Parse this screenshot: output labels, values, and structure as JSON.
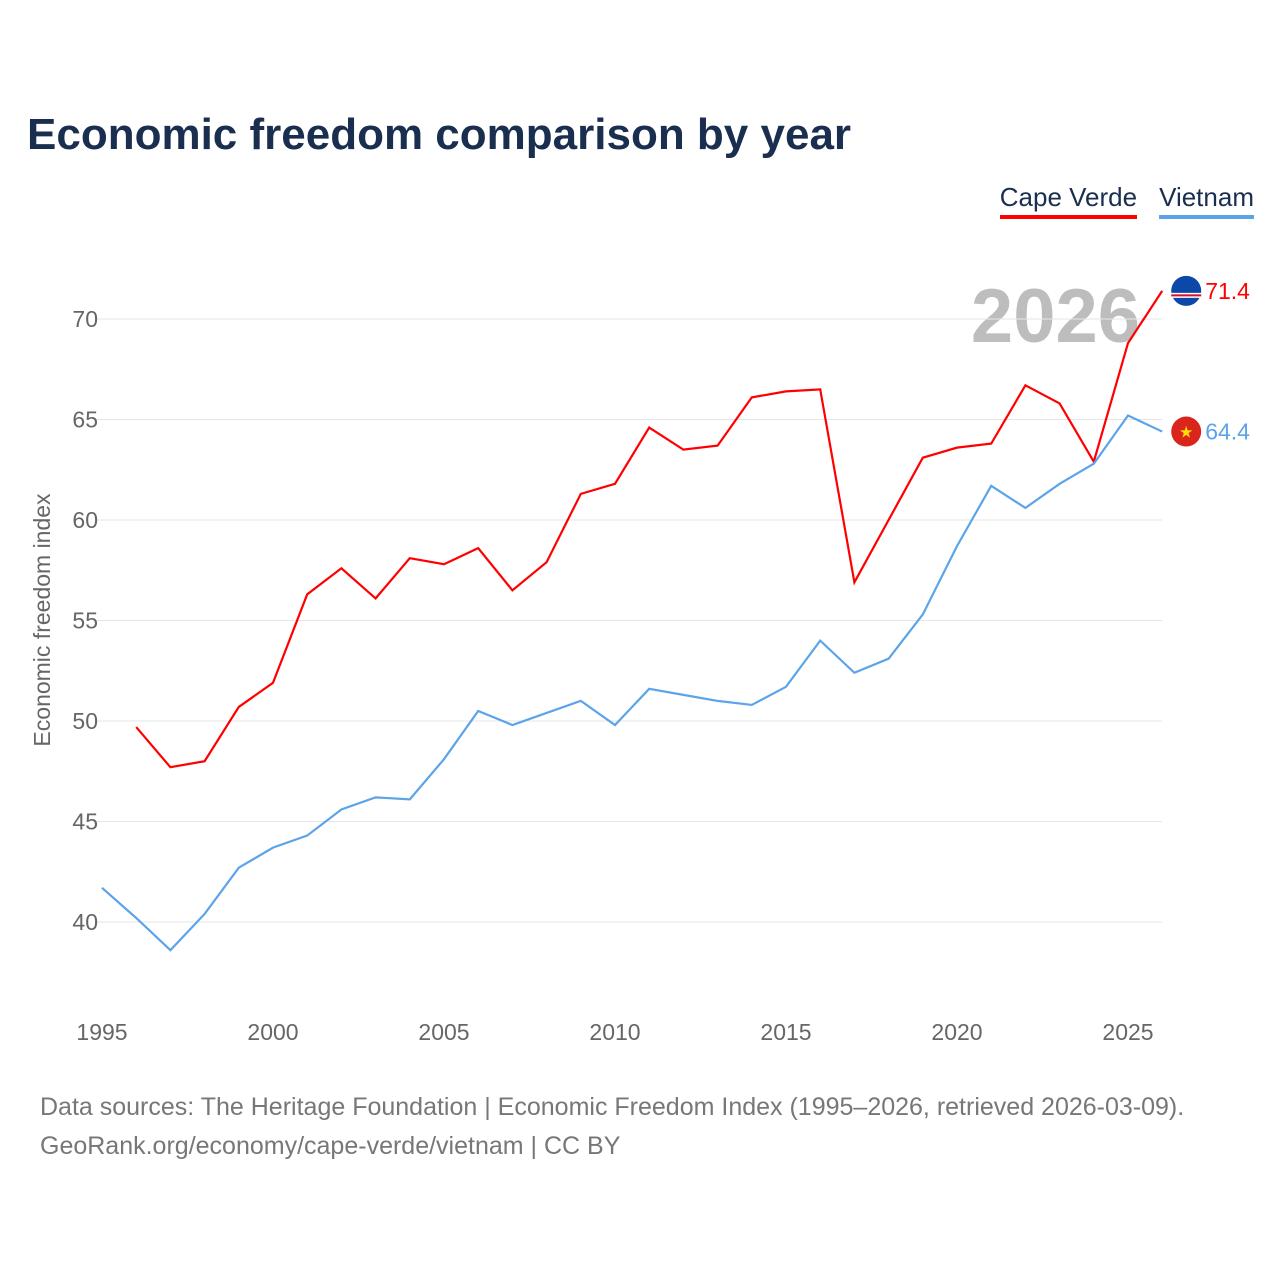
{
  "title": "Economic freedom comparison by year",
  "legend": [
    {
      "label": "Cape Verde",
      "color": "#ff0000"
    },
    {
      "label": "Vietnam",
      "color": "#5ba4ea"
    }
  ],
  "year_label": "2026",
  "source_line1": "Data sources: The Heritage Foundation | Economic Freedom Index (1995–2026, retrieved 2026-03-09).",
  "source_line2": "GeoRank.org/economy/cape-verde/vietnam | CC BY",
  "chart_data": {
    "type": "line",
    "title": "Economic freedom comparison by year",
    "xlabel": "",
    "ylabel": "Economic freedom index",
    "xlim": [
      1995,
      2026
    ],
    "ylim": [
      36,
      73
    ],
    "xticks": [
      1995,
      2000,
      2005,
      2010,
      2015,
      2020,
      2025
    ],
    "yticks": [
      40,
      45,
      50,
      55,
      60,
      65,
      70
    ],
    "grid": true,
    "legend_position": "top-right",
    "series": [
      {
        "name": "Cape Verde",
        "color": "#ff0000",
        "end_label": "71.4",
        "x": [
          1996,
          1997,
          1998,
          1999,
          2000,
          2001,
          2002,
          2003,
          2004,
          2005,
          2006,
          2007,
          2008,
          2009,
          2010,
          2011,
          2012,
          2013,
          2014,
          2015,
          2016,
          2017,
          2018,
          2019,
          2020,
          2021,
          2022,
          2023,
          2024,
          2025,
          2026
        ],
        "values": [
          49.7,
          47.7,
          48.0,
          50.7,
          51.9,
          56.3,
          57.6,
          56.1,
          58.1,
          57.8,
          58.6,
          56.5,
          57.9,
          61.3,
          61.8,
          64.6,
          63.5,
          63.7,
          66.1,
          66.4,
          66.5,
          56.9,
          60.0,
          63.1,
          63.6,
          63.8,
          66.7,
          65.8,
          62.9,
          68.8,
          71.4
        ]
      },
      {
        "name": "Vietnam",
        "color": "#5ba4ea",
        "end_label": "64.4",
        "x": [
          1995,
          1996,
          1997,
          1998,
          1999,
          2000,
          2001,
          2002,
          2003,
          2004,
          2005,
          2006,
          2007,
          2008,
          2009,
          2010,
          2011,
          2012,
          2013,
          2014,
          2015,
          2016,
          2017,
          2018,
          2019,
          2020,
          2021,
          2022,
          2023,
          2024,
          2025,
          2026
        ],
        "values": [
          41.7,
          40.2,
          38.6,
          40.4,
          42.7,
          43.7,
          44.3,
          45.6,
          46.2,
          46.1,
          48.1,
          50.5,
          49.8,
          50.4,
          51.0,
          49.8,
          51.6,
          51.3,
          51.0,
          50.8,
          51.7,
          54.0,
          52.4,
          53.1,
          55.3,
          58.7,
          61.7,
          60.6,
          61.8,
          62.8,
          65.2,
          64.4
        ]
      }
    ]
  }
}
